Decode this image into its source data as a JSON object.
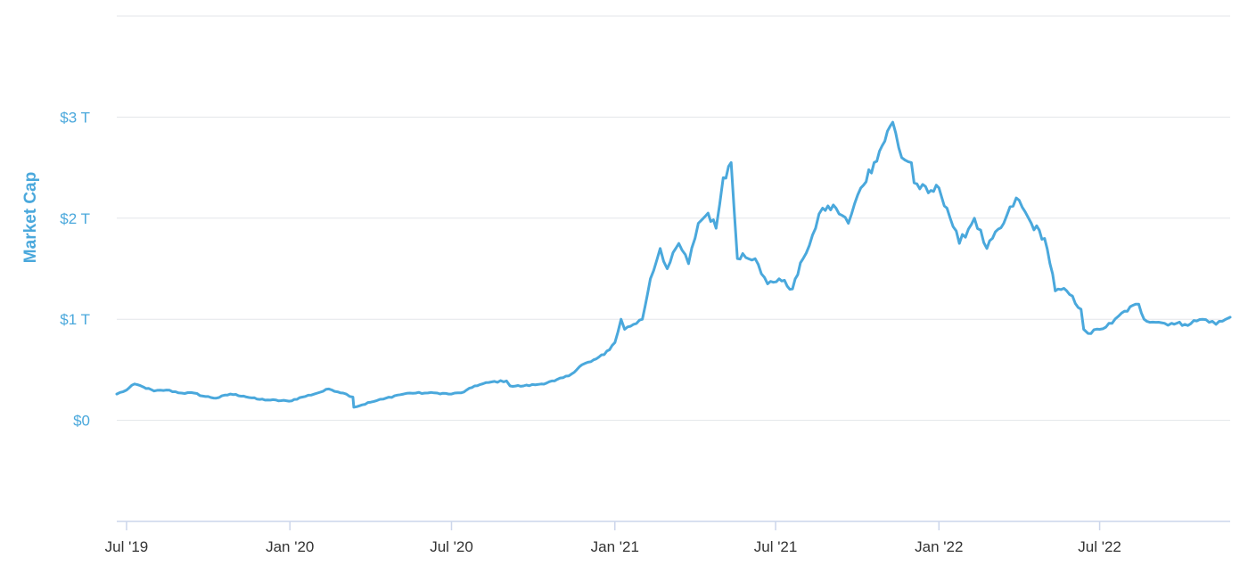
{
  "chart_data": {
    "type": "line",
    "ylabel": "Market Cap",
    "xlabel": "",
    "title": "",
    "y_ticks": [
      {
        "value": 0,
        "label": "$0"
      },
      {
        "value": 1,
        "label": "$1 T"
      },
      {
        "value": 2,
        "label": "$2 T"
      },
      {
        "value": 3,
        "label": "$3 T"
      }
    ],
    "ylim": [
      -1,
      4
    ],
    "y_unit": "trillion USD",
    "x_ticks": [
      {
        "date": "2019-07-01",
        "label": "Jul '19"
      },
      {
        "date": "2020-01-01",
        "label": "Jan '20"
      },
      {
        "date": "2020-07-01",
        "label": "Jul '20"
      },
      {
        "date": "2021-01-01",
        "label": "Jan '21"
      },
      {
        "date": "2021-07-01",
        "label": "Jul '21"
      },
      {
        "date": "2022-01-01",
        "label": "Jan '22"
      },
      {
        "date": "2022-07-01",
        "label": "Jul '22"
      }
    ],
    "xlim": [
      "2019-06-20",
      "2022-11-25"
    ],
    "grid": true,
    "color": "#4aa8dc",
    "series": [
      {
        "name": "",
        "x": [
          "2019-06-20",
          "2019-07-01",
          "2019-07-10",
          "2019-07-20",
          "2019-08-01",
          "2019-08-15",
          "2019-09-01",
          "2019-09-15",
          "2019-09-25",
          "2019-10-10",
          "2019-10-26",
          "2019-11-10",
          "2019-11-25",
          "2019-12-10",
          "2019-12-31",
          "2020-01-15",
          "2020-02-01",
          "2020-02-14",
          "2020-03-01",
          "2020-03-12",
          "2020-03-13",
          "2020-04-01",
          "2020-04-15",
          "2020-05-01",
          "2020-05-15",
          "2020-06-01",
          "2020-06-15",
          "2020-07-01",
          "2020-07-15",
          "2020-07-27",
          "2020-08-15",
          "2020-09-01",
          "2020-09-05",
          "2020-09-20",
          "2020-10-10",
          "2020-10-25",
          "2020-11-10",
          "2020-11-25",
          "2020-12-05",
          "2020-12-20",
          "2021-01-01",
          "2021-01-08",
          "2021-01-12",
          "2021-01-22",
          "2021-02-01",
          "2021-02-10",
          "2021-02-21",
          "2021-03-01",
          "2021-03-14",
          "2021-03-25",
          "2021-04-05",
          "2021-04-16",
          "2021-04-25",
          "2021-05-03",
          "2021-05-12",
          "2021-05-19",
          "2021-05-25",
          "2021-06-08",
          "2021-06-15",
          "2021-06-22",
          "2021-07-05",
          "2021-07-20",
          "2021-08-01",
          "2021-08-15",
          "2021-08-23",
          "2021-09-07",
          "2021-09-21",
          "2021-10-05",
          "2021-10-20",
          "2021-11-10",
          "2021-11-20",
          "2021-12-01",
          "2021-12-04",
          "2021-12-20",
          "2022-01-01",
          "2022-01-10",
          "2022-01-24",
          "2022-02-10",
          "2022-02-24",
          "2022-03-15",
          "2022-03-29",
          "2022-04-15",
          "2022-04-30",
          "2022-05-09",
          "2022-05-12",
          "2022-05-25",
          "2022-06-10",
          "2022-06-13",
          "2022-06-18",
          "2022-07-01",
          "2022-07-15",
          "2022-07-29",
          "2022-08-14",
          "2022-08-20",
          "2022-09-12",
          "2022-09-20",
          "2022-10-05",
          "2022-10-25",
          "2022-11-05",
          "2022-11-09",
          "2022-11-20",
          "2022-11-25"
        ],
        "values": [
          0.26,
          0.3,
          0.36,
          0.33,
          0.29,
          0.3,
          0.27,
          0.27,
          0.24,
          0.22,
          0.26,
          0.24,
          0.21,
          0.2,
          0.19,
          0.23,
          0.27,
          0.31,
          0.27,
          0.23,
          0.13,
          0.18,
          0.21,
          0.25,
          0.27,
          0.27,
          0.27,
          0.26,
          0.28,
          0.34,
          0.38,
          0.39,
          0.34,
          0.34,
          0.36,
          0.39,
          0.44,
          0.55,
          0.58,
          0.65,
          0.77,
          1.0,
          0.9,
          0.95,
          1.0,
          1.4,
          1.7,
          1.5,
          1.75,
          1.55,
          1.95,
          2.05,
          1.9,
          2.4,
          2.55,
          1.6,
          1.65,
          1.6,
          1.45,
          1.35,
          1.4,
          1.3,
          1.6,
          1.9,
          2.1,
          2.1,
          1.95,
          2.3,
          2.55,
          2.95,
          2.6,
          2.55,
          2.35,
          2.25,
          2.3,
          2.1,
          1.75,
          2.0,
          1.7,
          1.95,
          2.2,
          1.95,
          1.8,
          1.45,
          1.28,
          1.28,
          1.1,
          0.9,
          0.86,
          0.9,
          0.96,
          1.08,
          1.15,
          1.0,
          0.96,
          0.96,
          0.95,
          1.0,
          0.98,
          0.95,
          1.0,
          1.02
        ]
      }
    ]
  }
}
